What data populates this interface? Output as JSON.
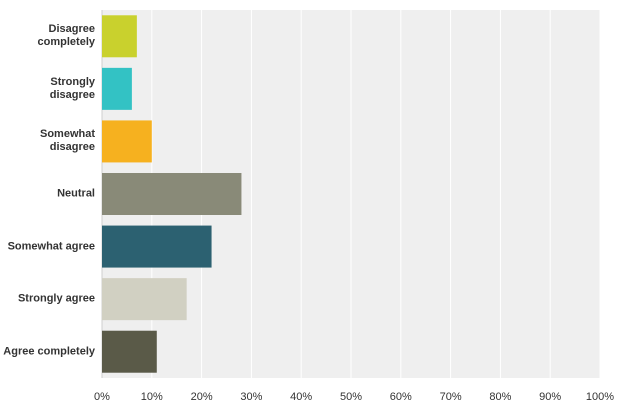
{
  "chart_data": {
    "type": "hbar",
    "categories": [
      "Disagree completely",
      "Strongly disagree",
      "Somewhat disagree",
      "Neutral",
      "Somewhat agree",
      "Strongly agree",
      "Agree completely"
    ],
    "values": [
      7,
      6,
      10,
      28,
      22,
      17,
      11
    ],
    "colors": [
      "#c9d12d",
      "#33c2c4",
      "#f6b11f",
      "#898a78",
      "#2c6171",
      "#d1d0c2",
      "#5a5a48"
    ],
    "xlim": [
      0,
      100
    ],
    "xticks": [
      {
        "value": 0,
        "label": "0%"
      },
      {
        "value": 10,
        "label": "10%"
      },
      {
        "value": 20,
        "label": "20%"
      },
      {
        "value": 30,
        "label": "30%"
      },
      {
        "value": 40,
        "label": "40%"
      },
      {
        "value": 50,
        "label": "50%"
      },
      {
        "value": 60,
        "label": "60%"
      },
      {
        "value": 70,
        "label": "70%"
      },
      {
        "value": 80,
        "label": "80%"
      },
      {
        "value": 90,
        "label": "90%"
      },
      {
        "value": 100,
        "label": "100%"
      }
    ],
    "grid": true
  }
}
